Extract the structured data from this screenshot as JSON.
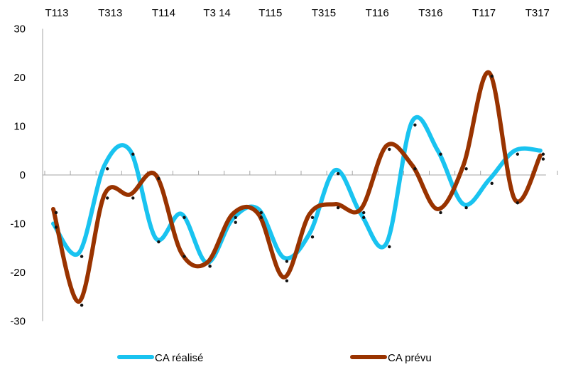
{
  "chart_data": {
    "type": "line",
    "x_tick_labels": [
      "T113",
      "T313",
      "T114",
      "T3 14",
      "T115",
      "T315",
      "T116",
      "T316",
      "T117",
      "T317"
    ],
    "y_ticks": [
      30,
      20,
      10,
      0,
      -10,
      -20,
      -30
    ],
    "ylim": [
      -30,
      30
    ],
    "grid": false,
    "legend_position": "bottom",
    "series": [
      {
        "name": "CA réalisé",
        "color": "#19c3f0",
        "values": [
          -10,
          -16,
          2,
          5,
          -13,
          -8,
          -18,
          -9,
          -7,
          -17,
          -12,
          1,
          -8,
          -14,
          11,
          5,
          -6,
          -1,
          5,
          5
        ]
      },
      {
        "name": "CA prévu",
        "color": "#993300",
        "values": [
          -7,
          -26,
          -4,
          -4,
          0,
          -16,
          -18,
          -8,
          -8,
          -21,
          -8,
          -6,
          -7,
          6,
          2,
          -7,
          2,
          21,
          -5,
          4
        ]
      }
    ]
  }
}
